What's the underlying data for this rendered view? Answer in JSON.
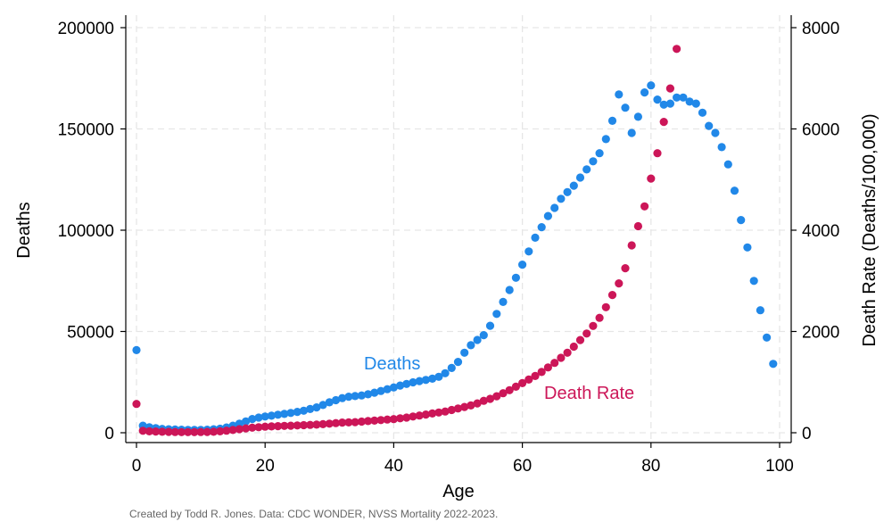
{
  "chart_data": {
    "type": "scatter",
    "title": "",
    "xlabel": "Age",
    "ylabel": "Deaths",
    "y2label": "Death Rate (Deaths/100,000)",
    "xlim": [
      0,
      100
    ],
    "ylim": [
      0,
      200000
    ],
    "y2lim": [
      0,
      8000
    ],
    "x_ticks": [
      "0",
      "20",
      "40",
      "60",
      "80",
      "100"
    ],
    "y_ticks": [
      "0",
      "50000",
      "100000",
      "150000",
      "200000"
    ],
    "y2_ticks": [
      "0",
      "2000",
      "4000",
      "6000",
      "8000"
    ],
    "grid": true,
    "credit": "Created by Todd R. Jones. Data: CDC WONDER, NVSS Mortality 2022-2023.",
    "colors": {
      "deaths": "#2188e8",
      "rate": "#cc1658"
    },
    "series": [
      {
        "name": "Deaths",
        "label": "Deaths",
        "axis": "left",
        "color": "#2188e8",
        "x": [
          0,
          1,
          2,
          3,
          4,
          5,
          6,
          7,
          8,
          9,
          10,
          11,
          12,
          13,
          14,
          15,
          16,
          17,
          18,
          19,
          20,
          21,
          22,
          23,
          24,
          25,
          26,
          27,
          28,
          29,
          30,
          31,
          32,
          33,
          34,
          35,
          36,
          37,
          38,
          39,
          40,
          41,
          42,
          43,
          44,
          45,
          46,
          47,
          48,
          49,
          50,
          51,
          52,
          53,
          54,
          55,
          56,
          57,
          58,
          59,
          60,
          61,
          62,
          63,
          64,
          65,
          66,
          67,
          68,
          69,
          70,
          71,
          72,
          73,
          74,
          75,
          76,
          77,
          78,
          79,
          80,
          81,
          82,
          83,
          84,
          85,
          86,
          87,
          88,
          89,
          90,
          91,
          92,
          93,
          94,
          95,
          96,
          97,
          98,
          99
        ],
        "y": [
          40800,
          3500,
          2700,
          2300,
          1900,
          1700,
          1600,
          1500,
          1400,
          1400,
          1400,
          1500,
          1700,
          2000,
          2600,
          3500,
          4500,
          5600,
          6800,
          7500,
          8000,
          8400,
          8900,
          9300,
          9800,
          10300,
          10900,
          11700,
          12500,
          13700,
          15000,
          16100,
          17100,
          17800,
          18100,
          18400,
          19000,
          19800,
          20600,
          21500,
          22400,
          23300,
          24100,
          24900,
          25500,
          26100,
          26700,
          27600,
          29400,
          32000,
          35000,
          39500,
          43200,
          45800,
          48200,
          52800,
          58700,
          64600,
          70500,
          76500,
          83000,
          89500,
          96300,
          101500,
          107000,
          111000,
          115500,
          118800,
          122000,
          126000,
          130000,
          134000,
          138000,
          145000,
          154000,
          167000,
          160500,
          148000,
          156000,
          168000,
          171500,
          164500,
          162000,
          162500,
          165500,
          165500,
          163500,
          162500,
          158000,
          151500,
          148000,
          141000,
          132500,
          119500,
          105000,
          91500,
          75000,
          60500,
          47000,
          34000
        ]
      },
      {
        "name": "Death Rate",
        "label": "Death Rate",
        "axis": "right",
        "color": "#cc1658",
        "x": [
          0,
          1,
          2,
          3,
          4,
          5,
          6,
          7,
          8,
          9,
          10,
          11,
          12,
          13,
          14,
          15,
          16,
          17,
          18,
          19,
          20,
          21,
          22,
          23,
          24,
          25,
          26,
          27,
          28,
          29,
          30,
          31,
          32,
          33,
          34,
          35,
          36,
          37,
          38,
          39,
          40,
          41,
          42,
          43,
          44,
          45,
          46,
          47,
          48,
          49,
          50,
          51,
          52,
          53,
          54,
          55,
          56,
          57,
          58,
          59,
          60,
          61,
          62,
          63,
          64,
          65,
          66,
          67,
          68,
          69,
          70,
          71,
          72,
          73,
          74,
          75,
          76,
          77,
          78,
          79,
          80,
          81,
          82,
          83,
          84
        ],
        "y": [
          570,
          38,
          29,
          24,
          19,
          17,
          14,
          13,
          13,
          13,
          14,
          16,
          20,
          28,
          40,
          55,
          70,
          86,
          100,
          110,
          120,
          125,
          130,
          135,
          140,
          145,
          150,
          155,
          160,
          170,
          180,
          190,
          200,
          205,
          210,
          220,
          230,
          240,
          250,
          260,
          270,
          285,
          300,
          320,
          340,
          360,
          380,
          400,
          420,
          450,
          480,
          510,
          540,
          580,
          630,
          670,
          720,
          780,
          840,
          910,
          980,
          1050,
          1120,
          1200,
          1290,
          1380,
          1480,
          1580,
          1700,
          1830,
          1960,
          2110,
          2270,
          2480,
          2720,
          2950,
          3250,
          3700,
          4080,
          4470,
          5020,
          5520,
          6140,
          6800,
          7580
        ]
      }
    ]
  }
}
